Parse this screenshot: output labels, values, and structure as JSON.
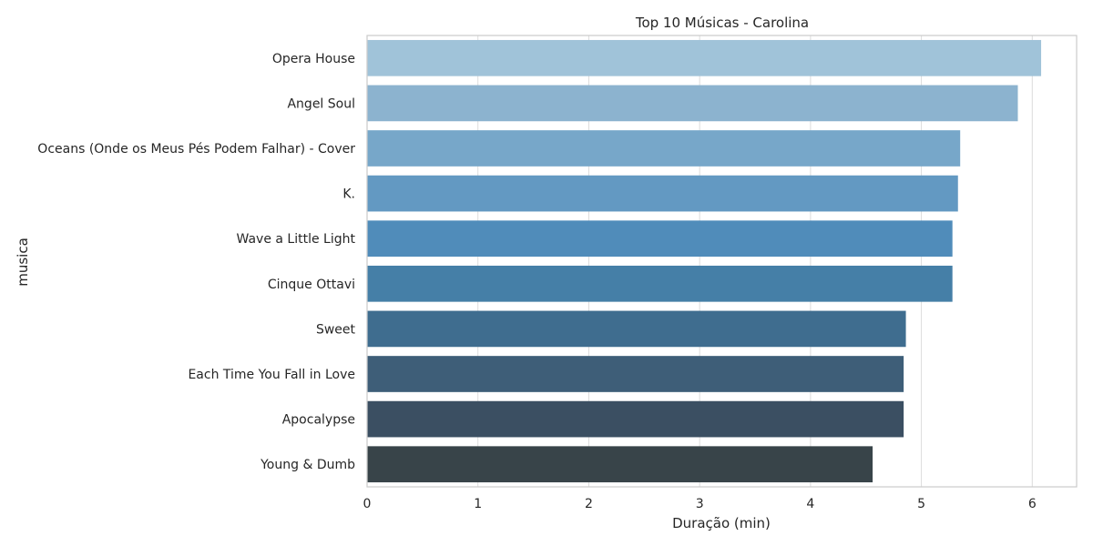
{
  "chart_data": {
    "type": "bar",
    "orientation": "horizontal",
    "title": "Top 10 Músicas - Carolina",
    "xlabel": "Duração (min)",
    "ylabel": "musica",
    "xlim": [
      0,
      6.4
    ],
    "xticks": [
      0,
      1,
      2,
      3,
      4,
      5,
      6
    ],
    "grid": true,
    "categories": [
      "Opera House",
      "Angel Soul",
      "Oceans (Onde os Meus Pés Podem Falhar) - Cover",
      "K.",
      "Wave a Little Light",
      "Cinque Ottavi",
      "Sweet",
      "Each Time You Fall in Love",
      "Apocalypse",
      "Young & Dumb"
    ],
    "values": [
      6.08,
      5.87,
      5.35,
      5.33,
      5.28,
      5.28,
      4.86,
      4.84,
      4.84,
      4.56
    ],
    "colors": [
      "#a0c3d9",
      "#8cb3cf",
      "#77a7c9",
      "#6399c2",
      "#508cba",
      "#457fa7",
      "#3f6d8f",
      "#3e5e78",
      "#3b4f62",
      "#384449"
    ]
  }
}
